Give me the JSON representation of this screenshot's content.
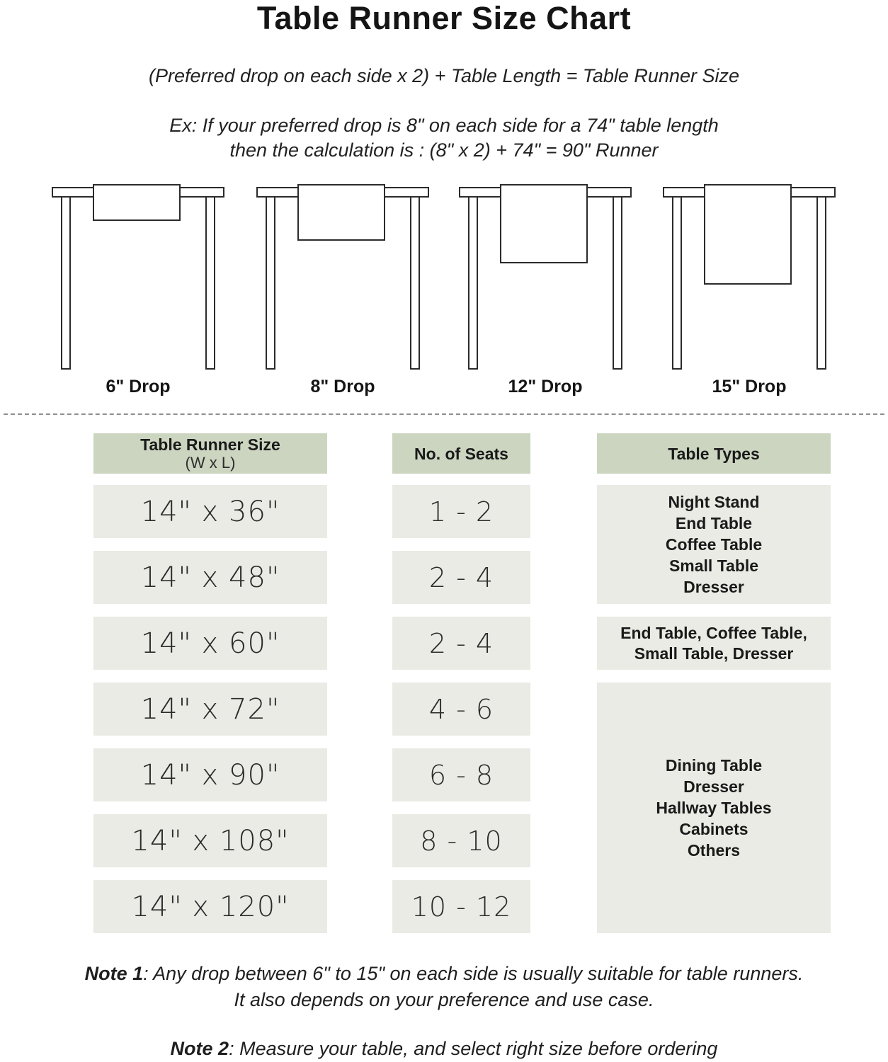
{
  "title": "Table Runner Size Chart",
  "formula": "(Preferred drop on each side x 2) + Table Length = Table Runner Size",
  "example": {
    "line1": "Ex: If your preferred drop is 8\" on each side for a 74\" table length",
    "line2": "then the calculation is : (8\" x 2) + 74\" = 90\" Runner"
  },
  "diagrams": [
    {
      "label": "6\" Drop"
    },
    {
      "label": "8\" Drop"
    },
    {
      "label": "12\" Drop"
    },
    {
      "label": "15\" Drop"
    }
  ],
  "size_chart": {
    "headers": {
      "size_line1": "Table Runner Size",
      "size_line2": "(W x L)",
      "seats": "No. of Seats",
      "types": "Table Types"
    },
    "rows": [
      {
        "size": "14\" x 36\"",
        "seats": "1 - 2"
      },
      {
        "size": "14\" x 48\"",
        "seats": "2 - 4"
      },
      {
        "size": "14\" x 60\"",
        "seats": "2 - 4"
      },
      {
        "size": "14\" x 72\"",
        "seats": "4 - 6"
      },
      {
        "size": "14\" x 90\"",
        "seats": "6 - 8"
      },
      {
        "size": "14\" x 108\"",
        "seats": "8 - 10"
      },
      {
        "size": "14\" x 120\"",
        "seats": "10 - 12"
      }
    ],
    "type_groups": [
      {
        "lines": [
          "Night Stand",
          "End Table",
          "Coffee Table",
          "Small Table",
          "Dresser"
        ]
      },
      {
        "lines": [
          "End Table, Coffee Table,",
          "Small Table, Dresser"
        ]
      },
      {
        "lines": [
          "Dining Table",
          "Dresser",
          "Hallway Tables",
          "Cabinets",
          "Others"
        ]
      }
    ]
  },
  "notes": {
    "note1_label": "Note 1",
    "note1_rest": ": Any drop between 6\" to 15\" on each side is usually suitable for table runners.",
    "note1_line2": "It also depends on your preference and use case.",
    "note2_label": "Note 2",
    "note2_rest": ": Measure your table, and select right size before ordering"
  },
  "colors": {
    "header_bg": "#ccd5c0",
    "cell_bg": "#e9ebe4",
    "diagram_stroke": "#2b2b2b",
    "text": "#1d1d1d"
  }
}
